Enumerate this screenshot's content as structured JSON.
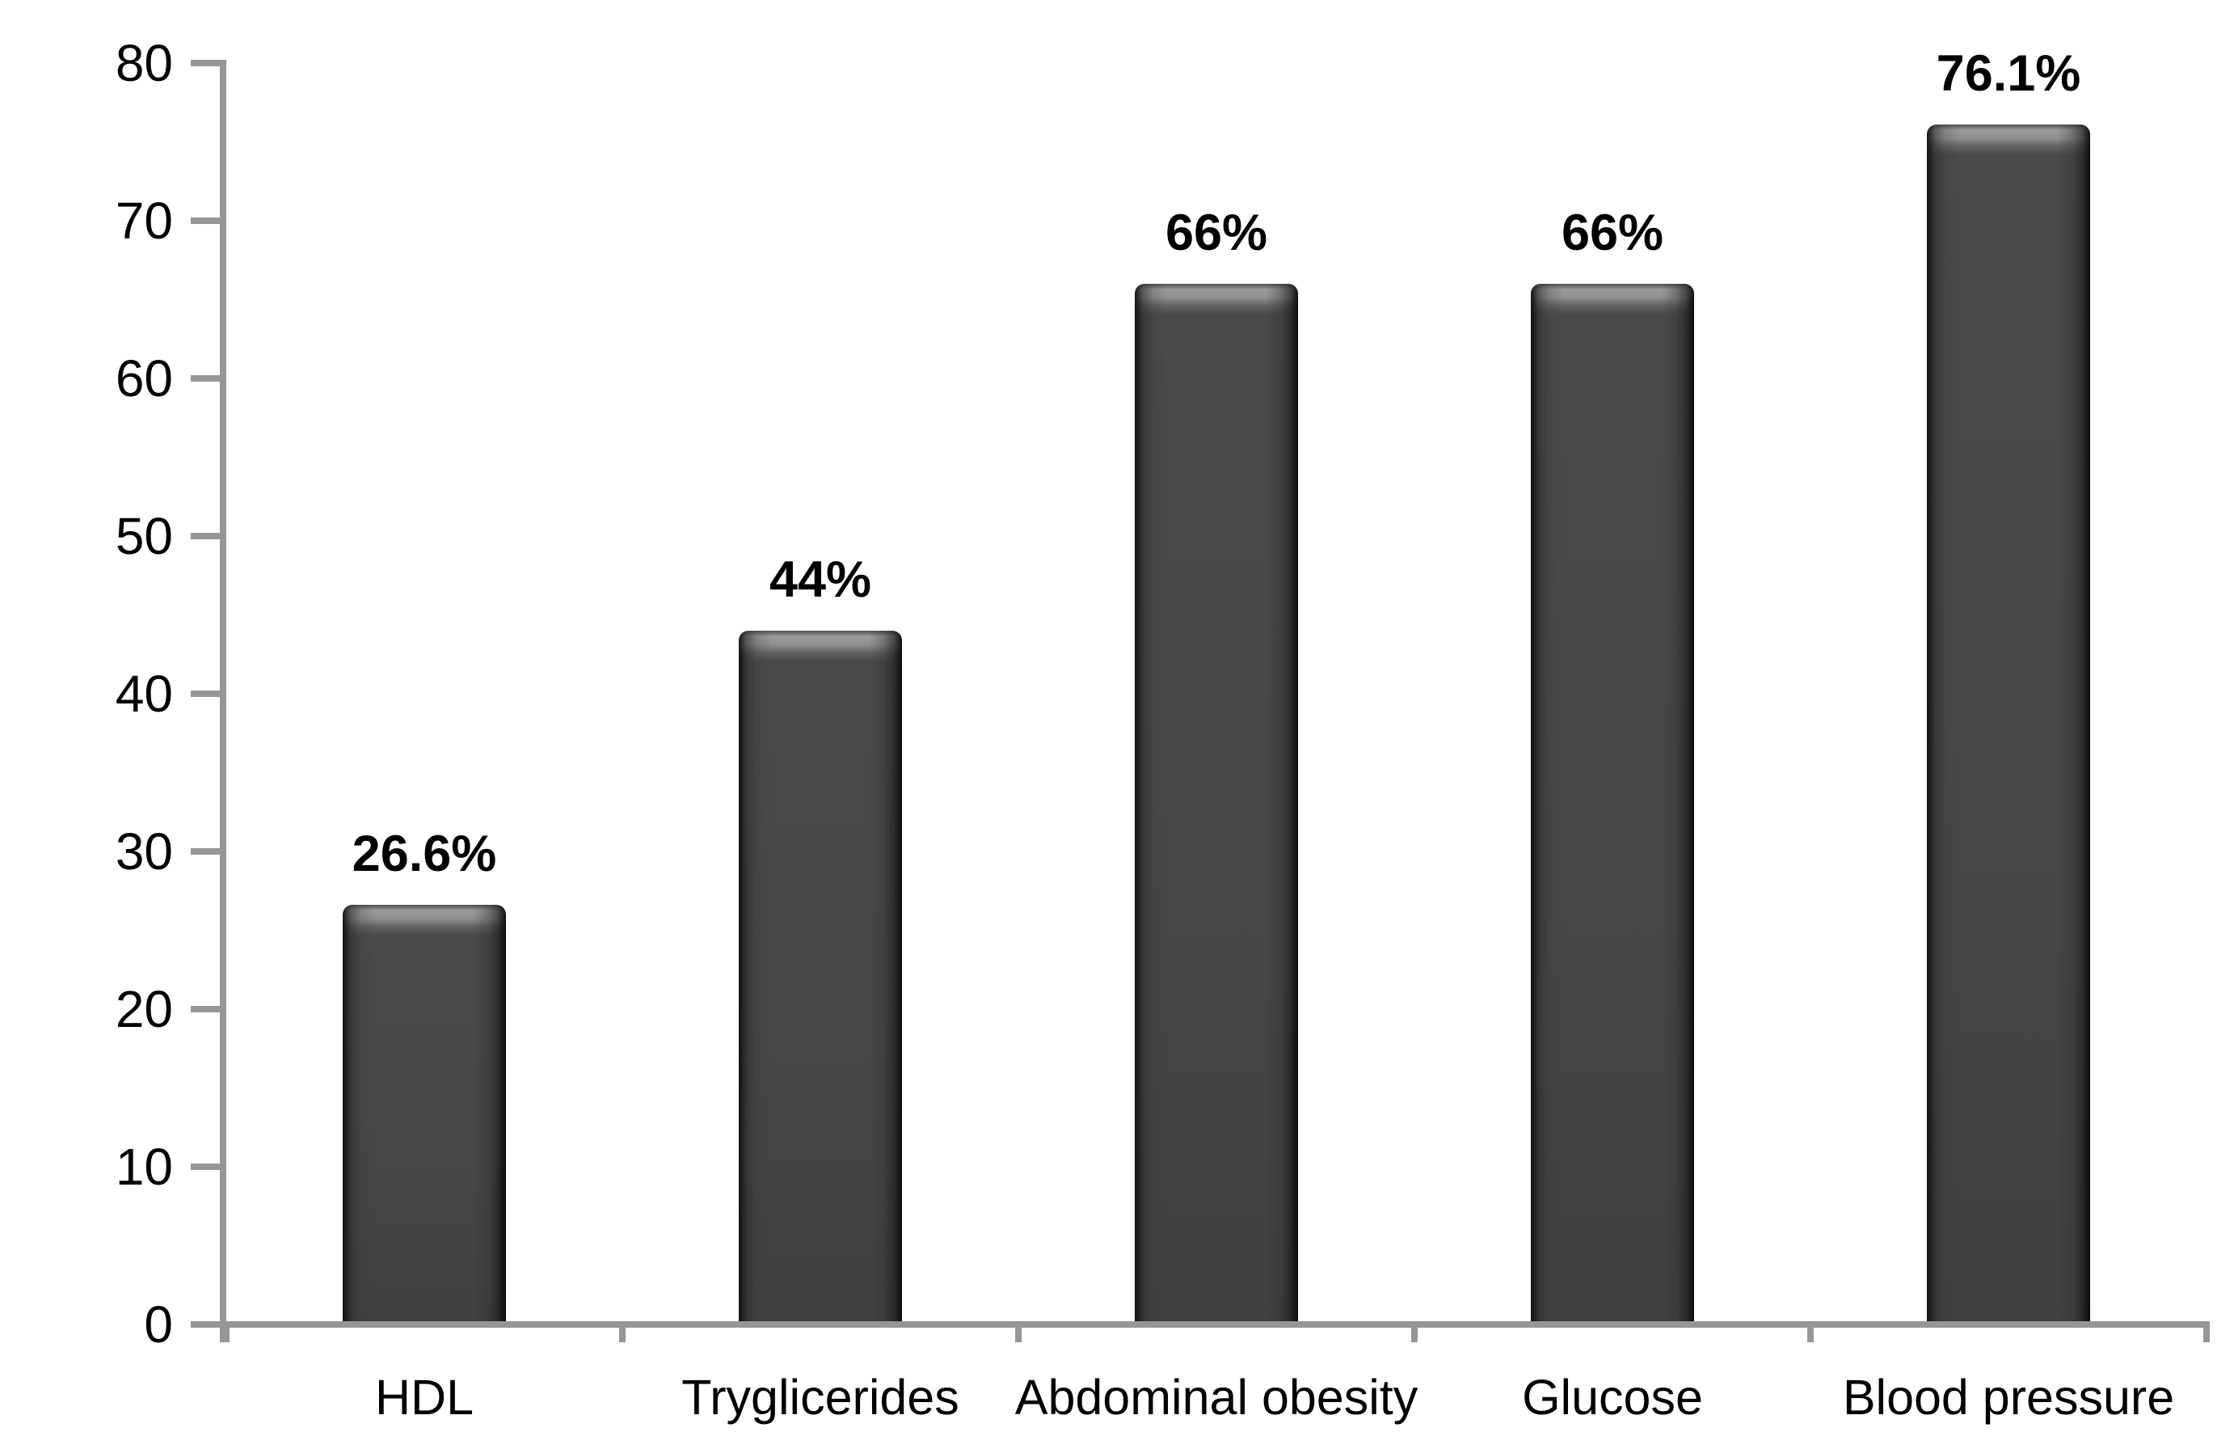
{
  "chart_data": {
    "type": "bar",
    "title": "",
    "xlabel": "",
    "ylabel": "",
    "categories": [
      "HDL",
      "Tryglicerides",
      "Abdominal obesity",
      "Glucose",
      "Blood pressure"
    ],
    "values": [
      26.6,
      44,
      66,
      66,
      76.1
    ],
    "data_labels": [
      "26.6%",
      "44%",
      "66%",
      "66%",
      "76.1%"
    ],
    "ylim": [
      0,
      80
    ],
    "ytick_step": 10,
    "ytick_labels": [
      "0",
      "10",
      "20",
      "30",
      "40",
      "50",
      "60",
      "70",
      "80"
    ],
    "grid": false,
    "legend_position": "none",
    "colors": {
      "bar_body": "#464646",
      "bar_edge": "#141414",
      "bar_gloss": "#9a9a9a",
      "axis": "#969696",
      "text": "#000000",
      "background": "#ffffff"
    }
  }
}
